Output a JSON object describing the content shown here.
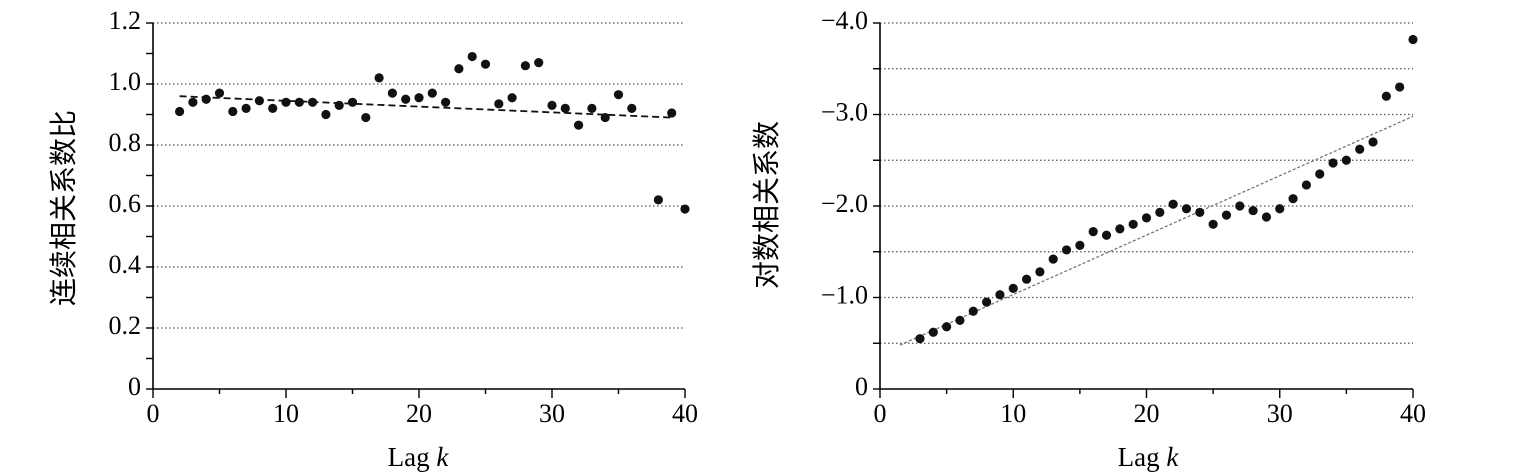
{
  "chart_data": [
    {
      "type": "scatter",
      "xlabel": "Lag",
      "xlabel_var": "k",
      "ylabel": "连续相关系数比",
      "xlim": [
        0,
        40
      ],
      "ylim": [
        0,
        1.2
      ],
      "xticks": [
        "0",
        "10",
        "20",
        "30",
        "40"
      ],
      "xtick_values": [
        0,
        10,
        20,
        30,
        40
      ],
      "yticks": [
        "0",
        "0.2",
        "0.4",
        "0.6",
        "0.8",
        "1.0",
        "1.2"
      ],
      "ytick_values": [
        0,
        0.2,
        0.4,
        0.6,
        0.8,
        1.0,
        1.2
      ],
      "y_minor_step": 0.1,
      "gridlines_y": [
        0.2,
        0.4,
        0.6,
        0.8,
        1.0,
        1.2
      ],
      "grid": true,
      "y_inverted": false,
      "marker_color": "#111111",
      "trend": {
        "style": "dashed",
        "color": "#111111",
        "x": [
          2,
          39
        ],
        "y": [
          0.96,
          0.89
        ]
      },
      "series": [
        {
          "x": [
            2,
            3,
            4,
            5,
            6,
            7,
            8,
            9,
            10,
            11,
            12,
            13,
            14,
            15,
            16,
            17,
            18,
            19,
            20,
            21,
            22,
            23,
            24,
            25,
            26,
            27,
            28,
            29,
            30,
            31,
            32,
            33,
            34,
            35,
            36,
            38,
            39,
            40
          ],
          "y": [
            0.91,
            0.94,
            0.95,
            0.97,
            0.91,
            0.92,
            0.945,
            0.92,
            0.94,
            0.94,
            0.94,
            0.9,
            0.93,
            0.94,
            0.89,
            1.02,
            0.97,
            0.95,
            0.955,
            0.97,
            0.94,
            1.05,
            1.09,
            1.065,
            0.935,
            0.955,
            1.06,
            1.07,
            0.93,
            0.92,
            0.865,
            0.92,
            0.89,
            0.965,
            0.92,
            0.62,
            0.905,
            0.59
          ]
        }
      ]
    },
    {
      "type": "scatter",
      "xlabel": "Lag",
      "xlabel_var": "k",
      "ylabel": "对数相关系数",
      "xlim": [
        0,
        40
      ],
      "ylim": [
        0,
        -4.0
      ],
      "xticks": [
        "0",
        "10",
        "20",
        "30",
        "40"
      ],
      "xtick_values": [
        0,
        10,
        20,
        30,
        40
      ],
      "yticks": [
        "0",
        "−1.0",
        "−2.0",
        "−3.0",
        "−4.0"
      ],
      "ytick_values": [
        0,
        -1.0,
        -2.0,
        -3.0,
        -4.0
      ],
      "y_minor_step": -0.5,
      "gridlines_y": [
        -0.5,
        -1.0,
        -1.5,
        -2.0,
        -2.5,
        -3.0,
        -3.5,
        -4.0
      ],
      "grid": true,
      "y_inverted": true,
      "marker_color": "#111111",
      "trend": {
        "style": "dashed",
        "color": "#777777",
        "x": [
          1.5,
          40
        ],
        "y": [
          -0.48,
          -2.98
        ]
      },
      "series": [
        {
          "x": [
            3,
            4,
            5,
            6,
            7,
            8,
            9,
            10,
            11,
            12,
            13,
            14,
            15,
            16,
            17,
            18,
            19,
            20,
            21,
            22,
            23,
            24,
            25,
            26,
            27,
            28,
            29,
            30,
            31,
            32,
            33,
            34,
            35,
            36,
            37,
            38,
            39,
            40
          ],
          "y": [
            -0.55,
            -0.62,
            -0.68,
            -0.75,
            -0.85,
            -0.95,
            -1.03,
            -1.1,
            -1.2,
            -1.28,
            -1.42,
            -1.52,
            -1.57,
            -1.72,
            -1.68,
            -1.75,
            -1.8,
            -1.87,
            -1.93,
            -2.02,
            -1.97,
            -1.93,
            -1.8,
            -1.9,
            -2.0,
            -1.95,
            -1.88,
            -1.97,
            -2.08,
            -2.23,
            -2.35,
            -2.47,
            -2.5,
            -2.62,
            -2.7,
            -3.2,
            -3.3,
            -3.82
          ]
        }
      ]
    }
  ]
}
